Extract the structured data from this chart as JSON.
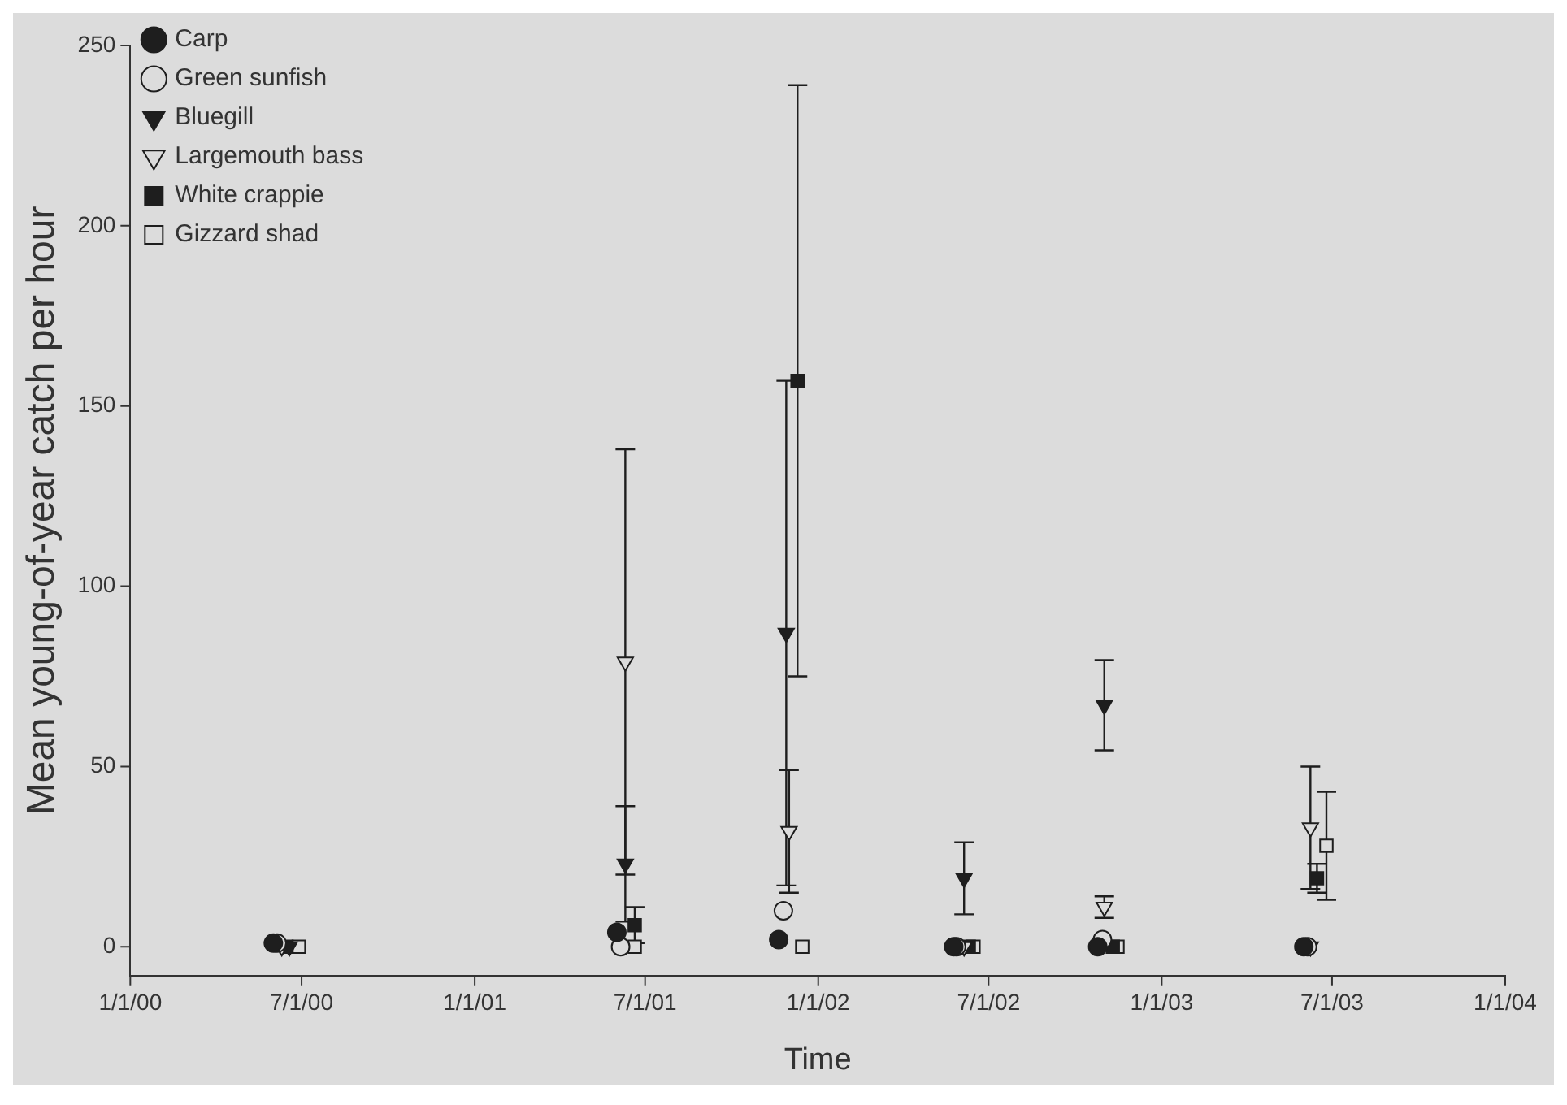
{
  "chart_data": {
    "type": "scatter",
    "xlabel": "Time",
    "ylabel": "Mean young-of-year catch per hour",
    "xlim": [
      "2000-01-01",
      "2004-01-01"
    ],
    "xticks": [
      {
        "value": "2000-01-01",
        "label": "1/1/00"
      },
      {
        "value": "2000-07-01",
        "label": "7/1/00"
      },
      {
        "value": "2001-01-01",
        "label": "1/1/01"
      },
      {
        "value": "2001-07-01",
        "label": "7/1/01"
      },
      {
        "value": "2002-01-01",
        "label": "1/1/02"
      },
      {
        "value": "2002-07-01",
        "label": "7/1/02"
      },
      {
        "value": "2003-01-01",
        "label": "1/1/03"
      },
      {
        "value": "2003-07-01",
        "label": "7/1/03"
      },
      {
        "value": "2004-01-01",
        "label": "1/1/04"
      }
    ],
    "ylim": [
      -8,
      250
    ],
    "yticks": [
      0,
      50,
      100,
      150,
      200,
      250
    ],
    "grid": false,
    "legend": "top left",
    "series": [
      {
        "name": "Carp",
        "color": "#1e1e1e",
        "marker": "circle",
        "x": [
          "2000-06-01",
          "2001-06-01",
          "2001-11-20",
          "2002-05-25",
          "2002-10-25",
          "2003-06-01"
        ],
        "values": [
          1,
          4,
          2,
          0,
          0,
          0
        ]
      },
      {
        "name": "Green sunfish",
        "color": "#1e1e1e",
        "marker": "circle",
        "x": [
          "2000-06-05",
          "2001-06-05",
          "2001-11-25",
          "2002-05-28",
          "2002-10-30",
          "2003-06-05"
        ],
        "values": [
          1,
          0,
          10,
          0,
          2,
          0
        ]
      },
      {
        "name": "Bluegill",
        "color": "#1e1e1e",
        "marker": "triangle",
        "x": [
          "2000-06-18",
          "2001-06-10",
          "2001-11-28",
          "2002-06-05",
          "2002-11-01",
          "2003-06-08"
        ],
        "values": [
          0,
          23,
          87,
          19,
          67,
          0
        ],
        "errors": [
          null,
          16,
          70,
          10,
          12.5,
          null
        ]
      },
      {
        "name": "Largemouth bass",
        "color": "#1e1e1e",
        "marker": "triangle",
        "x": [
          "2000-06-10",
          "2001-06-10",
          "2001-12-01",
          "2002-06-05",
          "2002-11-01",
          "2003-06-08"
        ],
        "values": [
          0,
          79,
          32,
          0,
          11,
          33
        ],
        "errors": [
          null,
          59,
          17,
          null,
          3,
          17
        ]
      },
      {
        "name": "White crappie",
        "color": "#1e1e1e",
        "marker": "square",
        "x": [
          "2000-06-15",
          "2001-06-20",
          "2001-12-10",
          "2002-06-10",
          "2002-11-10",
          "2003-06-15"
        ],
        "values": [
          0,
          6,
          157,
          0,
          0,
          19
        ],
        "errors": [
          null,
          5,
          82,
          null,
          null,
          4
        ]
      },
      {
        "name": "Gizzard shad",
        "color": "#1e1e1e",
        "marker": "square",
        "x": [
          "2000-06-28",
          "2001-06-20",
          "2001-12-15",
          "2002-06-15",
          "2002-11-15",
          "2003-06-25"
        ],
        "values": [
          0,
          0,
          0,
          0,
          0,
          28
        ],
        "errors": [
          null,
          null,
          null,
          null,
          null,
          15
        ]
      }
    ]
  }
}
